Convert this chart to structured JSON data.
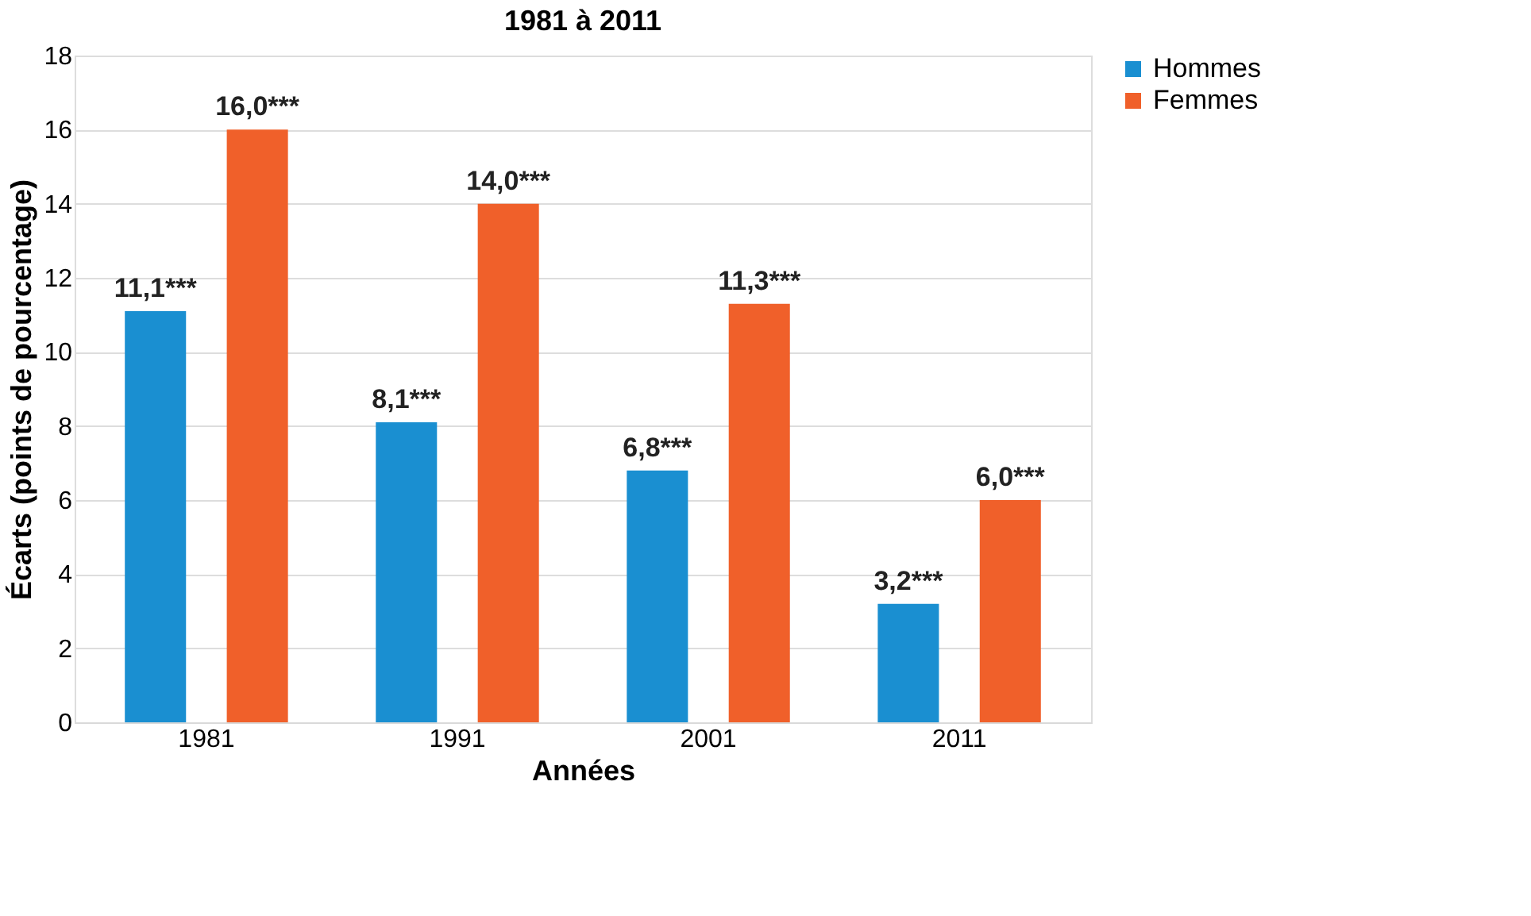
{
  "chart_data": {
    "type": "bar",
    "title": "1981 à 2011",
    "xlabel": "Années",
    "ylabel": "Écarts (points de pourcentage)",
    "categories": [
      "1981",
      "1991",
      "2001",
      "2011"
    ],
    "series": [
      {
        "name": "Hommes",
        "color": "#1a8fd1",
        "values": [
          11.1,
          8.1,
          6.8,
          3.2
        ],
        "value_labels": [
          "11,1***",
          "8,1***",
          "6,8***",
          "3,2***"
        ]
      },
      {
        "name": "Femmes",
        "color": "#f0602a",
        "values": [
          16.0,
          14.0,
          11.3,
          6.0
        ],
        "value_labels": [
          "16,0***",
          "14,0***",
          "11,3***",
          "6,0***"
        ]
      }
    ],
    "ylim": [
      0,
      18
    ],
    "yticks": [
      0,
      2,
      4,
      6,
      8,
      10,
      12,
      14,
      16,
      18
    ],
    "grid": "y",
    "legend": "right"
  }
}
